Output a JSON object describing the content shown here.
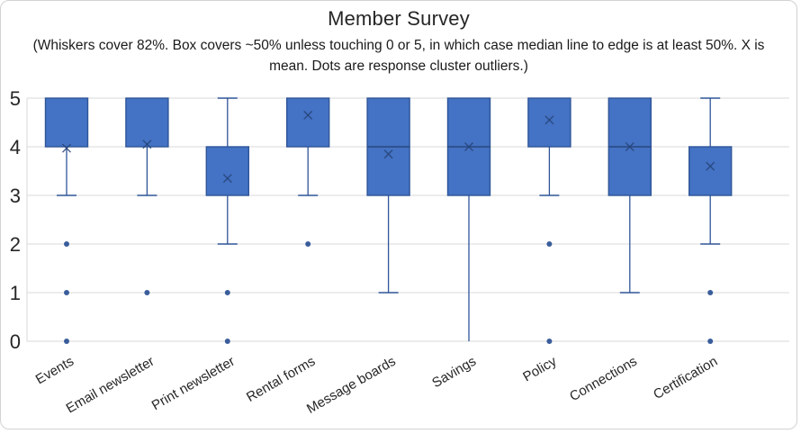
{
  "title": "Member Survey",
  "subtitle": "(Whiskers cover 82%. Box covers ~50% unless touching 0 or 5, in which case median line to edge is at least 50%. X is mean. Dots are response cluster outliers.)",
  "chart_data": {
    "type": "box",
    "title": "Member Survey",
    "subtitle": "(Whiskers cover 82%. Box covers ~50% unless touching 0 or 5, in which case median line to edge is at least 50%. X is mean. Dots are response cluster outliers.)",
    "xlabel": "",
    "ylabel": "",
    "ylim": [
      0,
      5
    ],
    "y_ticks": [
      0,
      1,
      2,
      3,
      4,
      5
    ],
    "grid": true,
    "legend": "none",
    "categories": [
      "Events",
      "Email newsletter",
      "Print newsletter",
      "Rental forms",
      "Message boards",
      "Savings",
      "Policy",
      "Connections",
      "Certification"
    ],
    "series": [
      {
        "category": "Events",
        "box_low": 4,
        "box_high": 5,
        "median": null,
        "mean": 3.97,
        "whisker_low": 3,
        "whisker_high": 5,
        "cap_low": true,
        "cap_high": false,
        "outliers": [
          2,
          1,
          0
        ]
      },
      {
        "category": "Email newsletter",
        "box_low": 4,
        "box_high": 5,
        "median": null,
        "mean": 4.05,
        "whisker_low": 3,
        "whisker_high": 5,
        "cap_low": true,
        "cap_high": false,
        "outliers": [
          1
        ]
      },
      {
        "category": "Print newsletter",
        "box_low": 3,
        "box_high": 4,
        "median": null,
        "mean": 3.35,
        "whisker_low": 2,
        "whisker_high": 5,
        "cap_low": true,
        "cap_high": true,
        "outliers": [
          1,
          0
        ]
      },
      {
        "category": "Rental forms",
        "box_low": 4,
        "box_high": 5,
        "median": null,
        "mean": 4.65,
        "whisker_low": 3,
        "whisker_high": 5,
        "cap_low": true,
        "cap_high": false,
        "outliers": [
          2
        ]
      },
      {
        "category": "Message boards",
        "box_low": 3,
        "box_high": 5,
        "median": 4,
        "mean": 3.85,
        "whisker_low": 1,
        "whisker_high": 5,
        "cap_low": true,
        "cap_high": false,
        "outliers": []
      },
      {
        "category": "Savings",
        "box_low": 3,
        "box_high": 5,
        "median": 4,
        "mean": 4.0,
        "whisker_low": 0,
        "whisker_high": 5,
        "cap_low": false,
        "cap_high": false,
        "outliers": []
      },
      {
        "category": "Policy",
        "box_low": 4,
        "box_high": 5,
        "median": null,
        "mean": 4.55,
        "whisker_low": 3,
        "whisker_high": 5,
        "cap_low": true,
        "cap_high": false,
        "outliers": [
          2,
          0
        ]
      },
      {
        "category": "Connections",
        "box_low": 3,
        "box_high": 5,
        "median": 4,
        "mean": 4.0,
        "whisker_low": 1,
        "whisker_high": 5,
        "cap_low": true,
        "cap_high": false,
        "outliers": []
      },
      {
        "category": "Certification",
        "box_low": 3,
        "box_high": 4,
        "median": null,
        "mean": 3.6,
        "whisker_low": 2,
        "whisker_high": 5,
        "cap_low": true,
        "cap_high": true,
        "outliers": [
          1,
          0
        ]
      }
    ],
    "colors": {
      "box_fill": "#4472C4",
      "box_border": "#2F5597",
      "whisker": "#2F5597",
      "median": "#264478",
      "mean_marker": "#264478",
      "outlier": "#2F5597",
      "gridline": "#D9D9D9",
      "axis_line": "#D9D9D9",
      "text": "#262626"
    }
  }
}
